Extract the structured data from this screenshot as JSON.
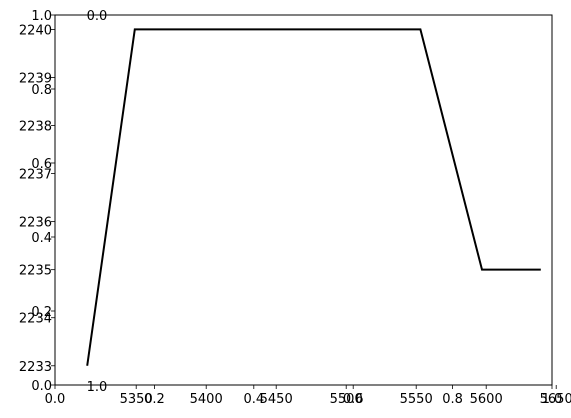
{
  "chart_data": {
    "type": "line",
    "title": "",
    "xlabel": "",
    "ylabel": "",
    "grid": false,
    "legend": "none",
    "series": [
      {
        "color": "#000000",
        "x": [
          5315,
          5349,
          5553,
          5597,
          5639
        ],
        "y": [
          2233.0,
          2240.0,
          2240.0,
          2235.0,
          2235.0
        ]
      }
    ],
    "x_axis": {
      "lim": [
        5292,
        5647
      ],
      "ticks": [
        5350,
        5400,
        5450,
        5500,
        5550,
        5600,
        5650
      ],
      "tick_labels": [
        "5350",
        "5400",
        "5450",
        "5500",
        "5550",
        "5600",
        "5650"
      ]
    },
    "y_axis": {
      "lim": [
        2232.6,
        2240.3
      ],
      "ticks": [
        2233,
        2234,
        2235,
        2236,
        2237,
        2238,
        2239,
        2240
      ],
      "tick_labels": [
        "2233",
        "2234",
        "2235",
        "2236",
        "2237",
        "2238",
        "2239",
        "2240"
      ]
    },
    "overlay_axes": {
      "ticks": [
        0.0,
        0.2,
        0.4,
        0.6,
        0.8,
        1.0
      ],
      "x_tick_labels": [
        "0.0",
        "0.2",
        "0.4",
        "0.6",
        "0.8",
        "1.0"
      ],
      "y_tick_labels": [
        "0.0",
        "0.2",
        "0.4",
        "0.6",
        "0.8",
        "1.0"
      ],
      "inner_x_top_label": "0.0",
      "inner_x_bottom_label": "1.0"
    }
  }
}
